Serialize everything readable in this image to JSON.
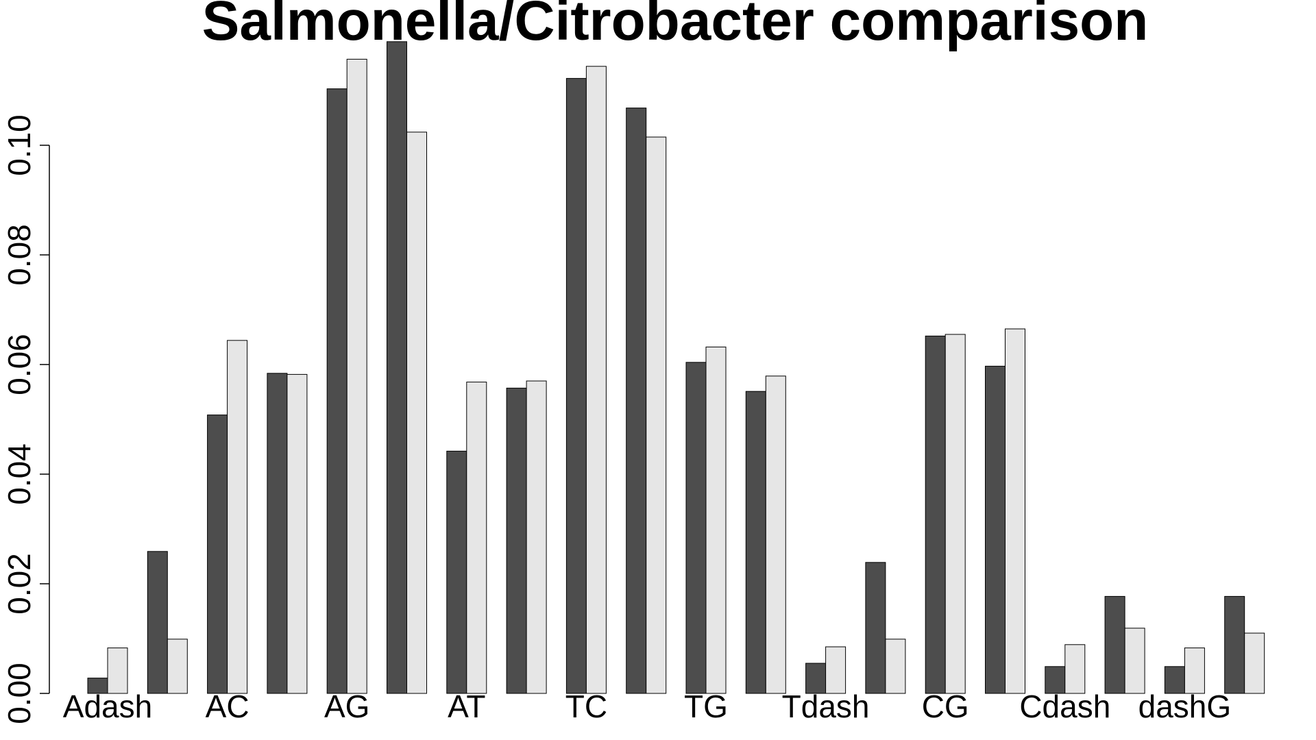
{
  "chart_data": {
    "type": "bar",
    "title": "Salmonella/Citrobacter comparison",
    "xlabel": "",
    "ylabel": "",
    "ylim": [
      0,
      0.12
    ],
    "yticks": [
      "0.00",
      "0.02",
      "0.04",
      "0.06",
      "0.08",
      "0.10"
    ],
    "categories": [
      "Adash",
      "",
      "AC",
      "",
      "AG",
      "",
      "AT",
      "",
      "TC",
      "",
      "TG",
      "",
      "Tdash",
      "",
      "CG",
      "",
      "Cdash",
      "",
      "dashG",
      ""
    ],
    "series": [
      {
        "color": "#4d4d4d",
        "values": [
          0.0028,
          0.0259,
          0.0508,
          0.0584,
          0.1103,
          0.1189,
          0.0442,
          0.0557,
          0.1122,
          0.1068,
          0.0604,
          0.0551,
          0.0055,
          0.0239,
          0.0652,
          0.0597,
          0.0049,
          0.0177,
          0.0049,
          0.0177
        ]
      },
      {
        "color": "#e6e6e6",
        "values": [
          0.0083,
          0.0099,
          0.0644,
          0.0582,
          0.1157,
          0.1024,
          0.0568,
          0.057,
          0.1144,
          0.1015,
          0.0632,
          0.0579,
          0.0085,
          0.0099,
          0.0655,
          0.0665,
          0.0089,
          0.0119,
          0.0083,
          0.011
        ]
      }
    ],
    "grid": false,
    "legend": "none"
  }
}
